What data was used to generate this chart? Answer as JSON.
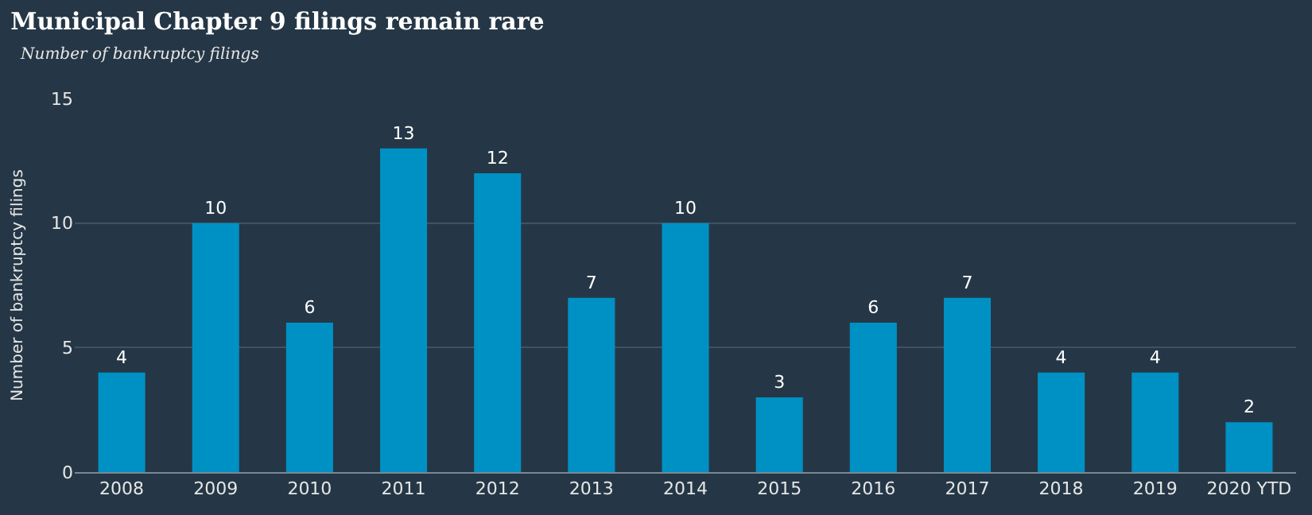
{
  "chart_data": {
    "type": "bar",
    "title": "Municipal Chapter 9 filings remain rare",
    "subtitle": "Number of bankruptcy filings",
    "ylabel": "Number of bankruptcy filings",
    "categories": [
      "2008",
      "2009",
      "2010",
      "2011",
      "2012",
      "2013",
      "2014",
      "2015",
      "2016",
      "2017",
      "2018",
      "2019",
      "2020 YTD"
    ],
    "values": [
      4,
      10,
      6,
      13,
      12,
      7,
      10,
      3,
      6,
      7,
      4,
      4,
      2
    ],
    "color": "#0091c4",
    "ylim": [
      0,
      15
    ],
    "yticks": [
      0,
      5,
      10,
      15
    ],
    "grid": "y",
    "data_labels": true
  }
}
